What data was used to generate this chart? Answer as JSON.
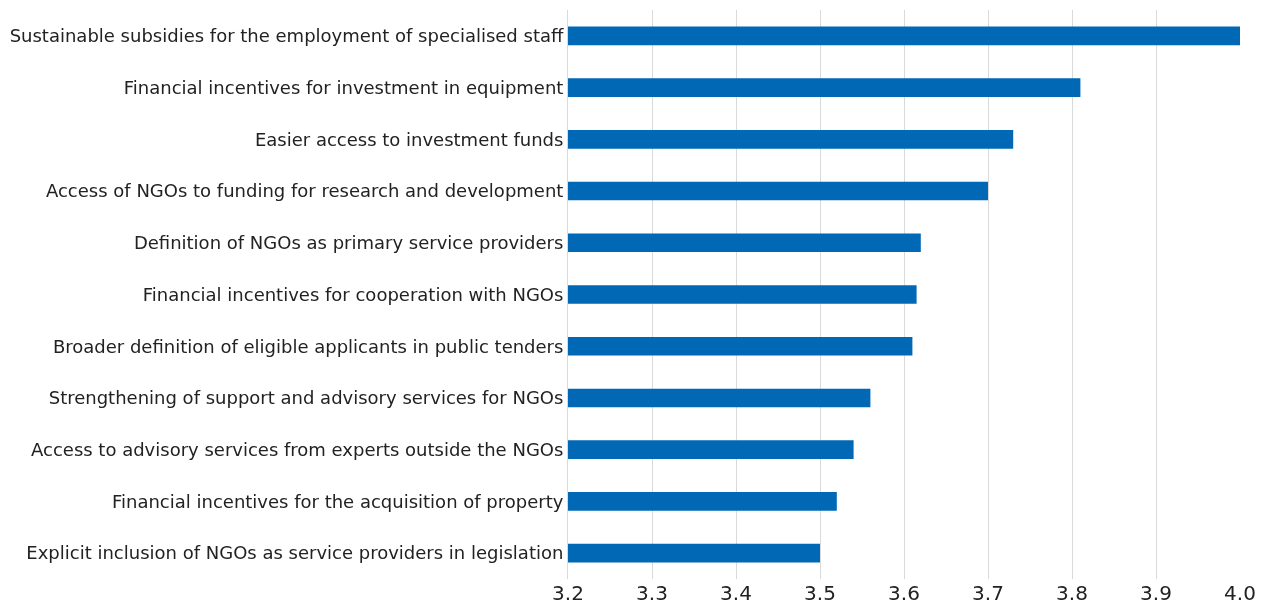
{
  "chart_data": {
    "type": "bar",
    "orientation": "horizontal",
    "categories": [
      "Sustainable subsidies for the employment of specialised staff",
      "Financial incentives for investment in equipment",
      "Easier access to investment funds",
      "Access of NGOs to funding for research and development",
      "Definition of NGOs as primary service providers",
      "Financial incentives for cooperation with NGOs",
      "Broader definition of eligible applicants in public tenders",
      "Strengthening of support and advisory services for NGOs",
      "Access to advisory services from experts outside the NGOs",
      "Financial incentives for the acquisition of property",
      "Explicit inclusion of NGOs as service providers in legislation"
    ],
    "values": [
      4.0,
      3.81,
      3.73,
      3.7,
      3.62,
      3.615,
      3.61,
      3.56,
      3.54,
      3.52,
      3.5
    ],
    "color": "#0068b5",
    "xlim": [
      3.2,
      4.0
    ],
    "xticks": [
      3.2,
      3.3,
      3.4,
      3.5,
      3.6,
      3.7,
      3.8,
      3.9,
      {
        "value": 4,
        "label": "4.0"
      }
    ],
    "grid": "x"
  }
}
